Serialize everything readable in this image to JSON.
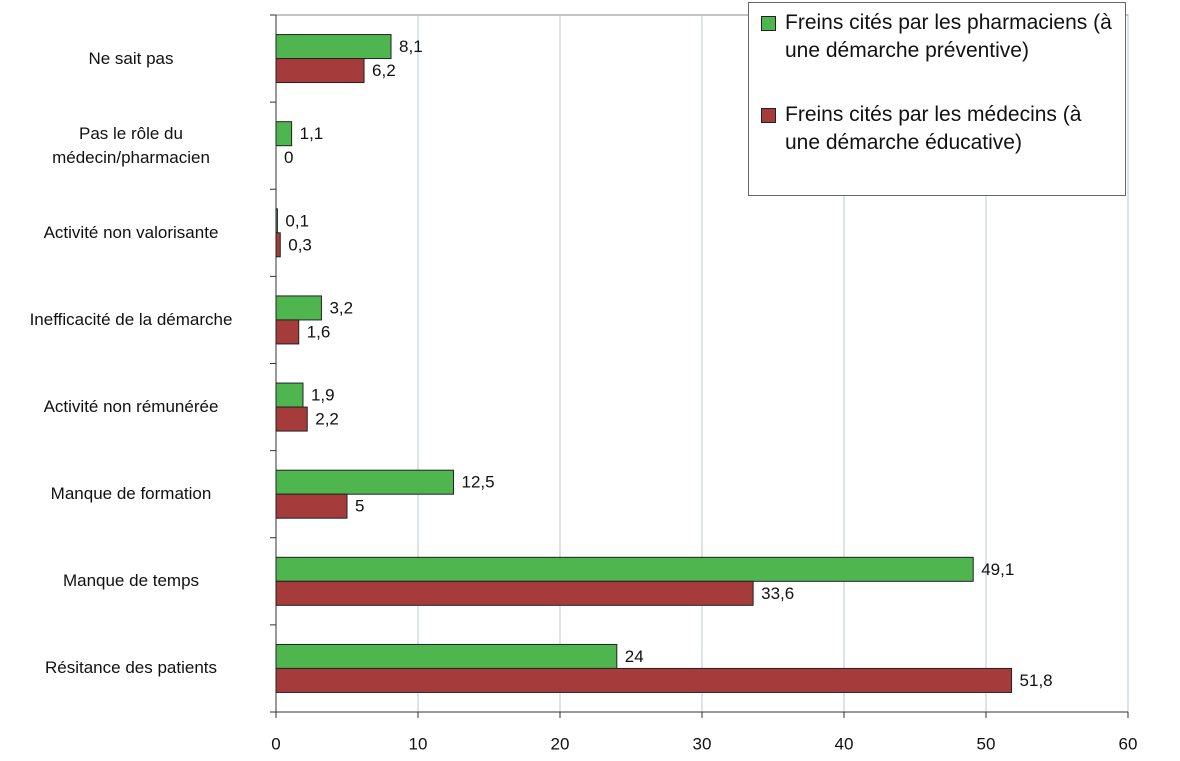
{
  "chart_data": {
    "type": "bar",
    "orientation": "horizontal",
    "categories": [
      "Ne sait pas",
      "Pas le rôle du médecin/pharmacien",
      "Activité non valorisante",
      "Inefficacité de la démarche",
      "Activité non rémunérée",
      "Manque de formation",
      "Manque de temps",
      "Résitance des patients"
    ],
    "series": [
      {
        "name": "Freins cités par les pharmaciens (à une démarche préventive)",
        "color": "#4fb54f",
        "values": [
          8.1,
          1.1,
          0.1,
          3.2,
          1.9,
          12.5,
          49.1,
          24
        ],
        "value_labels": [
          "8,1",
          "1,1",
          "0,1",
          "3,2",
          "1,9",
          "12,5",
          "49,1",
          "24"
        ]
      },
      {
        "name": "Freins cités par les médecins (à une démarche éducative)",
        "color": "#a53b3b",
        "values": [
          6.2,
          0,
          0.3,
          1.6,
          2.2,
          5,
          33.6,
          51.8
        ],
        "value_labels": [
          "6,2",
          "0",
          "0,3",
          "1,6",
          "2,2",
          "5",
          "33,6",
          "51,8"
        ]
      }
    ],
    "xlim": [
      0,
      60
    ],
    "xticks": [
      0,
      10,
      20,
      30,
      40,
      50,
      60
    ],
    "grid": true,
    "legend": "top-right"
  }
}
